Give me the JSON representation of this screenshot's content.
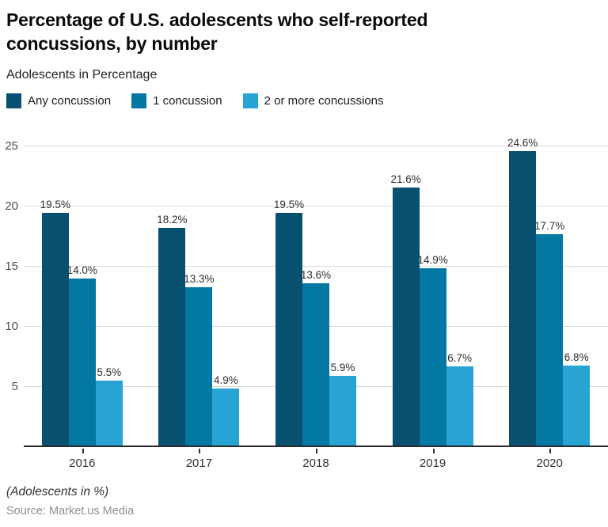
{
  "header": {
    "title": "Percentage of U.S. adolescents who self-reported concussions, by number",
    "subtitle": "Adolescents in Percentage"
  },
  "chart_data": {
    "type": "bar",
    "categories": [
      "2016",
      "2017",
      "2018",
      "2019",
      "2020"
    ],
    "series": [
      {
        "name": "Any concussion",
        "color": "#07506f",
        "values": [
          19.5,
          18.2,
          19.5,
          21.6,
          24.6
        ]
      },
      {
        "name": "1 concussion",
        "color": "#0278a3",
        "values": [
          14.0,
          13.3,
          13.6,
          14.9,
          17.7
        ]
      },
      {
        "name": "2 or more concussions",
        "color": "#27a3d4",
        "values": [
          5.5,
          4.9,
          5.9,
          6.7,
          6.8
        ]
      }
    ],
    "title": "Percentage of U.S. adolescents who self-reported concussions, by number",
    "xlabel": "",
    "ylabel": "Adolescents in Percentage",
    "ylim": [
      0,
      25
    ],
    "y_ticks": [
      5,
      10,
      15,
      20,
      25
    ],
    "grid": true,
    "legend_position": "top",
    "data_label_format": "one-decimal-percent",
    "colors": {
      "grid": "#d9d9d9",
      "axis": "#2b2b2b",
      "label": "#2e2e2e"
    }
  },
  "footer": {
    "note": "(Adolescents in %)",
    "source": "Source: Market.us Media"
  }
}
